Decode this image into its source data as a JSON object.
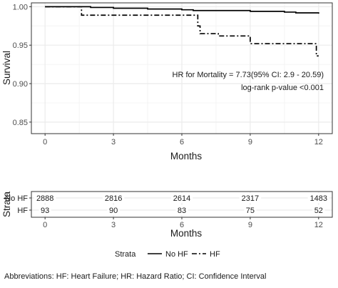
{
  "chart_data": [
    {
      "type": "line",
      "title": "",
      "xlabel": "Months",
      "ylabel": "Survival",
      "xlim": [
        -0.6,
        12.6
      ],
      "ylim": [
        0.835,
        1.005
      ],
      "x_ticks": [
        0,
        3,
        6,
        9,
        12
      ],
      "y_ticks": [
        0.85,
        0.9,
        0.95,
        1.0
      ],
      "y_tick_labels": [
        "0.85",
        "0.90",
        "0.95",
        "1.00"
      ],
      "grid": true,
      "series": [
        {
          "name": "No HF",
          "line_style": "solid",
          "x": [
            0,
            2.0,
            3.0,
            4.5,
            6.0,
            6.5,
            7.5,
            9.0,
            10.5,
            11.0,
            12.0
          ],
          "y": [
            1.0,
            0.999,
            0.998,
            0.997,
            0.996,
            0.995,
            0.995,
            0.994,
            0.993,
            0.992,
            0.991
          ]
        },
        {
          "name": "HF",
          "line_style": "dashdot",
          "x": [
            0,
            1.6,
            1.6,
            6.7,
            6.7,
            6.8,
            6.8,
            7.6,
            7.6,
            9.0,
            9.0,
            10.0,
            11.9,
            11.9,
            12.0
          ],
          "y": [
            1.0,
            1.0,
            0.989,
            0.989,
            0.975,
            0.975,
            0.965,
            0.965,
            0.962,
            0.962,
            0.952,
            0.952,
            0.952,
            0.936,
            0.936
          ]
        }
      ],
      "annotations": [
        "HR for Mortality = 7.73(95% CI: 2.9 - 20.59)",
        "log-rank p-value <0.001"
      ]
    },
    {
      "type": "table",
      "title": "",
      "xlabel": "Months",
      "ylabel": "Strata",
      "x_ticks": [
        0,
        3,
        6,
        9,
        12
      ],
      "rows": [
        {
          "name": "No HF",
          "values": [
            "2888",
            "2816",
            "2614",
            "2317",
            "1483"
          ]
        },
        {
          "name": "HF",
          "values": [
            "93",
            "90",
            "83",
            "75",
            "52"
          ]
        }
      ]
    }
  ],
  "legend": {
    "title": "Strata",
    "items": [
      {
        "label": "No HF",
        "line_style": "solid"
      },
      {
        "label": "HF",
        "line_style": "dashdot"
      }
    ]
  },
  "footnote": "Abbreviations: HF: Heart Failure; HR: Hazard Ratio; CI: Confidence Interval",
  "colors": {
    "panel_border": "#333333",
    "grid": "#ebebeb",
    "line": "#000000",
    "tick_text": "#4d4d4d"
  }
}
